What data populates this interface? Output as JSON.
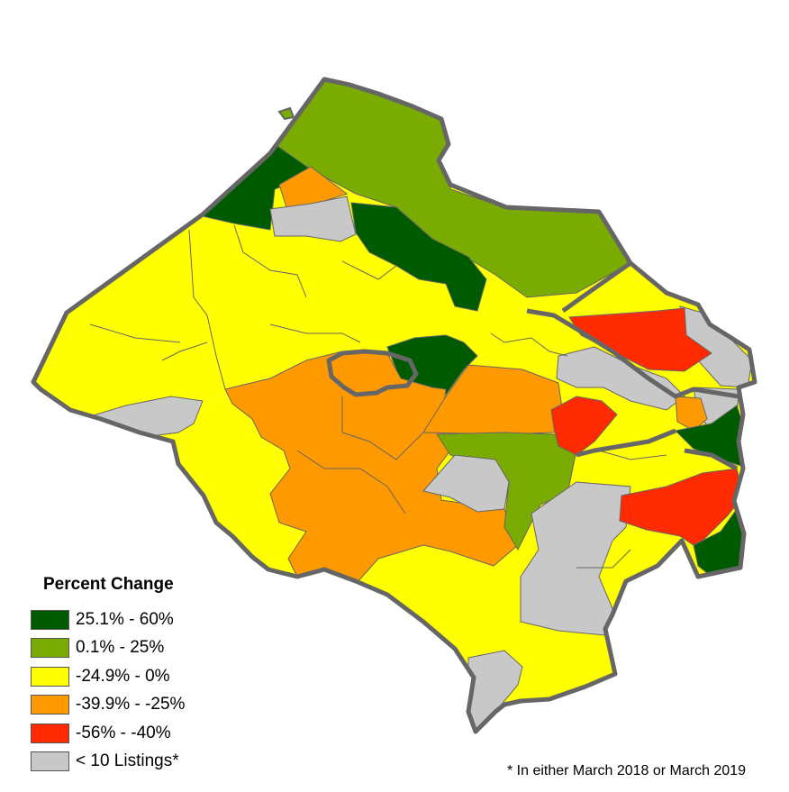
{
  "legend": {
    "title": "Percent Change",
    "items": [
      {
        "label": "25.1% - 60%",
        "color": "#005a00"
      },
      {
        "label": "0.1% - 25%",
        "color": "#7aab00"
      },
      {
        "label": "-24.9% - 0%",
        "color": "#ffff00"
      },
      {
        "label": "-39.9% - -25%",
        "color": "#ff9900"
      },
      {
        "label": "-56% - -40%",
        "color": "#ff2a00"
      },
      {
        "label": "< 10 Listings*",
        "color": "#c8c8c8"
      }
    ]
  },
  "footnote": "* In either March 2018 or March 2019"
}
